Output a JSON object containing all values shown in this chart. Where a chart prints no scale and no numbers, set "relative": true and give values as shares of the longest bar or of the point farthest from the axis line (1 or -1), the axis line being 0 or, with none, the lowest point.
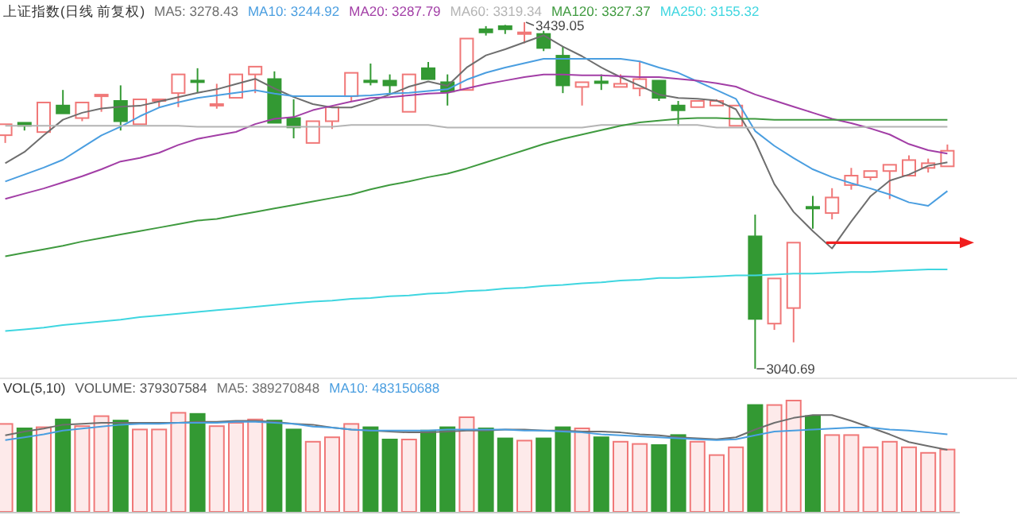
{
  "chart_data": [
    {
      "type": "candlestick",
      "title": "上证指数(日线 前复权)",
      "legend": "top left",
      "categories": [
        null,
        null,
        null,
        null,
        null,
        null,
        null,
        null,
        null,
        null,
        null,
        null,
        null,
        null,
        null,
        null,
        null,
        null,
        null,
        null,
        null,
        null,
        null,
        null,
        null,
        null,
        null,
        null,
        null,
        null,
        null,
        null,
        null,
        null,
        null,
        null,
        null,
        null,
        null,
        null,
        null,
        null,
        null,
        null,
        null,
        null,
        null,
        null,
        null,
        null
      ],
      "ohlc": [
        [
          3309.2,
          3321.8,
          3300.3,
          3321.8
        ],
        [
          3323.5,
          3323.5,
          3314.6,
          3320.0
        ],
        [
          3312.8,
          3346.8,
          3312.8,
          3346.8
        ],
        [
          3343.3,
          3361.2,
          3334.3,
          3334.3
        ],
        [
          3328.9,
          3346.8,
          3325.3,
          3346.8
        ],
        [
          3354.0,
          3355.8,
          3336.1,
          3355.8
        ],
        [
          3348.6,
          3366.5,
          3314.6,
          3325.3
        ],
        [
          3321.8,
          3350.4,
          3321.8,
          3350.4
        ],
        [
          3348.6,
          3350.4,
          3341.5,
          3350.4
        ],
        [
          3357.6,
          3379.1,
          3341.5,
          3379.1
        ],
        [
          3372.0,
          3386.2,
          3357.6,
          3371.0
        ],
        [
          3344.0,
          3368.3,
          3339.7,
          3345.0
        ],
        [
          3352.2,
          3379.1,
          3352.2,
          3379.1
        ],
        [
          3379.1,
          3388.0,
          3357.6,
          3388.0
        ],
        [
          3373.7,
          3382.6,
          3323.5,
          3323.5
        ],
        [
          3328.9,
          3350.4,
          3305.6,
          3318.2
        ],
        [
          3300.3,
          3325.3,
          3300.3,
          3325.3
        ],
        [
          3325.3,
          3341.5,
          3316.4,
          3341.5
        ],
        [
          3354.0,
          3380.9,
          3348.6,
          3380.9
        ],
        [
          3372.0,
          3391.6,
          3366.5,
          3371.0
        ],
        [
          3371.9,
          3379.1,
          3357.6,
          3366.5
        ],
        [
          3336.1,
          3379.1,
          3336.1,
          3379.1
        ],
        [
          3386.2,
          3393.4,
          3373.7,
          3373.7
        ],
        [
          3370.1,
          3379.1,
          3343.3,
          3359.4
        ],
        [
          3361.2,
          3420.3,
          3361.2,
          3420.3
        ],
        [
          3431.0,
          3434.6,
          3423.8,
          3427.4
        ],
        [
          3434.6,
          3436.0,
          3425.6,
          3431.0
        ],
        [
          3426.5,
          3439.05,
          3414.9,
          3427.4
        ],
        [
          3425.6,
          3429.2,
          3405.9,
          3409.5
        ],
        [
          3400.6,
          3411.3,
          3357.6,
          3366.5
        ],
        [
          3364.7,
          3370.1,
          3343.3,
          3370.1
        ],
        [
          3371.0,
          3379.1,
          3361.2,
          3370.0
        ],
        [
          3364.7,
          3379.1,
          3364.7,
          3368.3
        ],
        [
          3363.0,
          3393.4,
          3354.0,
          3373.7
        ],
        [
          3371.9,
          3371.9,
          3348.6,
          3352.2
        ],
        [
          3343.3,
          3348.6,
          3320.0,
          3337.9
        ],
        [
          3341.5,
          3348.6,
          3341.5,
          3348.6
        ],
        [
          3343.3,
          3350.4,
          3343.3,
          3348.6
        ],
        [
          3320.0,
          3343.3,
          3320.0,
          3343.3
        ],
        [
          3192.9,
          3217.9,
          3040.69,
          3098.0
        ],
        [
          3092.6,
          3144.5,
          3085.4,
          3144.5
        ],
        [
          3110.5,
          3185.7,
          3071.1,
          3185.7
        ],
        [
          3226.8,
          3239.4,
          3201.8,
          3225.1
        ],
        [
          3219.7,
          3248.3,
          3212.5,
          3237.6
        ],
        [
          3251.9,
          3271.6,
          3246.6,
          3262.7
        ],
        [
          3260.9,
          3268.0,
          3257.3,
          3268.0
        ],
        [
          3268.0,
          3275.2,
          3235.8,
          3275.2
        ],
        [
          3262.7,
          3285.9,
          3262.7,
          3280.6
        ],
        [
          3271.6,
          3282.3,
          3266.3,
          3277.0
        ],
        [
          3273.4,
          3298.5,
          3273.4,
          3291.3
        ]
      ],
      "series": [
        {
          "name": "MA5: 3278.43",
          "type": "line",
          "color": "#6e6e6e",
          "values": [
            3277,
            3290,
            3309,
            3327,
            3335,
            3340,
            3342,
            3343,
            3348,
            3353,
            3358,
            3362,
            3368,
            3374,
            3363,
            3353,
            3345,
            3341,
            3341,
            3348,
            3356,
            3365,
            3371,
            3366,
            3387,
            3401,
            3408,
            3416,
            3424,
            3411,
            3400,
            3387,
            3376,
            3366,
            3356,
            3352,
            3351,
            3349,
            3339,
            3302,
            3253,
            3221,
            3199,
            3179,
            3210,
            3239,
            3257,
            3264,
            3274,
            3278
          ]
        },
        {
          "name": "MA10: 3244.92",
          "type": "line",
          "color": "#4a9ee0",
          "values": [
            3256,
            3264,
            3272,
            3281,
            3295,
            3309,
            3319,
            3331,
            3341,
            3347,
            3352,
            3355,
            3358,
            3361,
            3357,
            3354,
            3354,
            3354,
            3354,
            3355,
            3357,
            3358,
            3360,
            3362,
            3373,
            3381,
            3387,
            3392,
            3397,
            3397,
            3397,
            3397,
            3397,
            3394,
            3387,
            3381,
            3371,
            3361,
            3351,
            3314,
            3297,
            3283,
            3270,
            3261,
            3254,
            3248,
            3241,
            3232,
            3228,
            3245
          ]
        },
        {
          "name": "MA20: 3287.79",
          "type": "line",
          "color": "#a23ea6",
          "values": [
            3236,
            3242,
            3248,
            3255,
            3262,
            3270,
            3279,
            3283,
            3289,
            3298,
            3305,
            3309,
            3313,
            3322,
            3328,
            3330,
            3338,
            3343,
            3348,
            3352,
            3353,
            3355,
            3357,
            3358,
            3363,
            3368,
            3372,
            3376,
            3379,
            3379,
            3378,
            3378,
            3377,
            3376,
            3376,
            3374,
            3372,
            3369,
            3365,
            3356,
            3349,
            3342,
            3335,
            3328,
            3323,
            3317,
            3310,
            3299,
            3292,
            3288
          ]
        },
        {
          "name": "MA60: 3319.34",
          "type": "line",
          "color": "#b4b4b4",
          "values": [
            3320,
            3320,
            3320,
            3320,
            3320,
            3320,
            3320,
            3320,
            3320,
            3320,
            3319,
            3319,
            3319,
            3319,
            3319,
            3319,
            3319,
            3319,
            3321,
            3321,
            3321,
            3321,
            3321,
            3318,
            3318,
            3318,
            3318,
            3318,
            3318,
            3318,
            3318,
            3321,
            3321,
            3321,
            3321,
            3321,
            3321,
            3318,
            3318,
            3318,
            3318,
            3318,
            3318,
            3318,
            3318,
            3319,
            3319,
            3319,
            3319,
            3319
          ]
        },
        {
          "name": "MA120: 3327.37",
          "type": "line",
          "color": "#3f9a3f",
          "values": [
            3170,
            3174,
            3178,
            3182,
            3187,
            3191,
            3195,
            3199,
            3203,
            3207,
            3211,
            3213,
            3217,
            3221,
            3225,
            3229,
            3233,
            3237,
            3241,
            3247,
            3252,
            3256,
            3261,
            3265,
            3271,
            3278,
            3285,
            3292,
            3299,
            3305,
            3310,
            3315,
            3320,
            3324,
            3326,
            3328,
            3329,
            3329,
            3328,
            3328,
            3327,
            3327,
            3327,
            3327,
            3327,
            3327,
            3327,
            3327,
            3327,
            3327
          ]
        },
        {
          "name": "MA250: 3155.32",
          "type": "line",
          "color": "#3fd6e0",
          "values": [
            3084,
            3086,
            3088,
            3091,
            3093,
            3095,
            3097,
            3100,
            3102,
            3104,
            3106,
            3108,
            3110,
            3112,
            3114,
            3116,
            3118,
            3119,
            3121,
            3122,
            3124,
            3125,
            3127,
            3128,
            3130,
            3131,
            3133,
            3134,
            3136,
            3137,
            3139,
            3140,
            3142,
            3143,
            3145,
            3145,
            3146,
            3147,
            3148,
            3148,
            3149,
            3150,
            3150,
            3151,
            3152,
            3152,
            3153,
            3154,
            3155,
            3155
          ]
        }
      ],
      "annotations": [
        "3439.05",
        "3040.69"
      ]
    },
    {
      "type": "bar",
      "title": "VOL(5,10)",
      "relative": true,
      "categories": [
        null,
        null,
        null,
        null,
        null,
        null,
        null,
        null,
        null,
        null,
        null,
        null,
        null,
        null,
        null,
        null,
        null,
        null,
        null,
        null,
        null,
        null,
        null,
        null,
        null,
        null,
        null,
        null,
        null,
        null,
        null,
        null,
        null,
        null,
        null,
        null,
        null,
        null,
        null,
        null,
        null,
        null,
        null,
        null,
        null,
        null,
        null,
        null,
        null,
        null
      ],
      "series": [
        {
          "name": "VOLUME: 379307584",
          "values": [
            0.79,
            0.75,
            0.76,
            0.83,
            0.77,
            0.86,
            0.82,
            0.74,
            0.74,
            0.89,
            0.88,
            0.77,
            0.8,
            0.83,
            0.82,
            0.74,
            0.63,
            0.67,
            0.79,
            0.76,
            0.65,
            0.65,
            0.73,
            0.76,
            0.85,
            0.75,
            0.66,
            0.64,
            0.66,
            0.76,
            0.75,
            0.67,
            0.63,
            0.61,
            0.6,
            0.69,
            0.63,
            0.51,
            0.58,
            0.96,
            0.96,
            1,
            0.86,
            0.69,
            0.69,
            0.58,
            0.63,
            0.58,
            0.53,
            0.56
          ],
          "colors": [
            "#f07878",
            "#339933",
            "#f07878",
            "#339933",
            "#f07878",
            "#f07878",
            "#339933",
            "#f07878",
            "#f07878",
            "#f07878",
            "#339933",
            "#f07878",
            "#f07878",
            "#f07878",
            "#339933",
            "#339933",
            "#f07878",
            "#f07878",
            "#f07878",
            "#339933",
            "#339933",
            "#f07878",
            "#339933",
            "#339933",
            "#f07878",
            "#339933",
            "#339933",
            "#f07878",
            "#339933",
            "#339933",
            "#f07878",
            "#339933",
            "#f07878",
            "#f07878",
            "#339933",
            "#339933",
            "#f07878",
            "#f07878",
            "#f07878",
            "#339933",
            "#f07878",
            "#f07878",
            "#339933",
            "#f07878",
            "#f07878",
            "#f07878",
            "#f07878",
            "#f07878",
            "#f07878",
            "#f07878"
          ]
        }
      ]
    },
    {
      "type": "line",
      "relative": true,
      "legend": "top left",
      "categories": [
        null,
        null,
        null,
        null,
        null,
        null,
        null,
        null,
        null,
        null,
        null,
        null,
        null,
        null,
        null,
        null,
        null,
        null,
        null,
        null,
        null,
        null,
        null,
        null,
        null,
        null,
        null,
        null,
        null,
        null,
        null,
        null,
        null,
        null,
        null,
        null,
        null,
        null,
        null,
        null,
        null,
        null,
        null,
        null,
        null,
        null,
        null,
        null,
        null,
        null
      ],
      "series": [
        {
          "name": "MA5: 389270848",
          "color": "#6e6e6e",
          "values": [
            0.79,
            0.83,
            0.86,
            0.9,
            0.91,
            0.92,
            0.92,
            0.92,
            0.92,
            0.92,
            0.93,
            0.93,
            0.94,
            0.94,
            0.93,
            0.91,
            0.9,
            0.87,
            0.85,
            0.84,
            0.83,
            0.82,
            0.82,
            0.83,
            0.84,
            0.84,
            0.85,
            0.85,
            0.84,
            0.84,
            0.83,
            0.83,
            0.82,
            0.8,
            0.79,
            0.77,
            0.76,
            0.75,
            0.77,
            0.85,
            0.92,
            0.97,
            1,
            1,
            0.94,
            0.87,
            0.8,
            0.72,
            0.68,
            0.64
          ]
        },
        {
          "name": "MA10: 483150688",
          "color": "#4a9ee0",
          "values": [
            0.74,
            0.77,
            0.8,
            0.84,
            0.86,
            0.88,
            0.9,
            0.91,
            0.91,
            0.92,
            0.92,
            0.92,
            0.93,
            0.93,
            0.92,
            0.91,
            0.88,
            0.87,
            0.85,
            0.84,
            0.84,
            0.84,
            0.84,
            0.85,
            0.85,
            0.85,
            0.85,
            0.84,
            0.84,
            0.83,
            0.82,
            0.8,
            0.79,
            0.78,
            0.77,
            0.76,
            0.75,
            0.74,
            0.75,
            0.79,
            0.83,
            0.84,
            0.85,
            0.86,
            0.87,
            0.87,
            0.85,
            0.84,
            0.82,
            0.8
          ]
        }
      ]
    }
  ]
}
